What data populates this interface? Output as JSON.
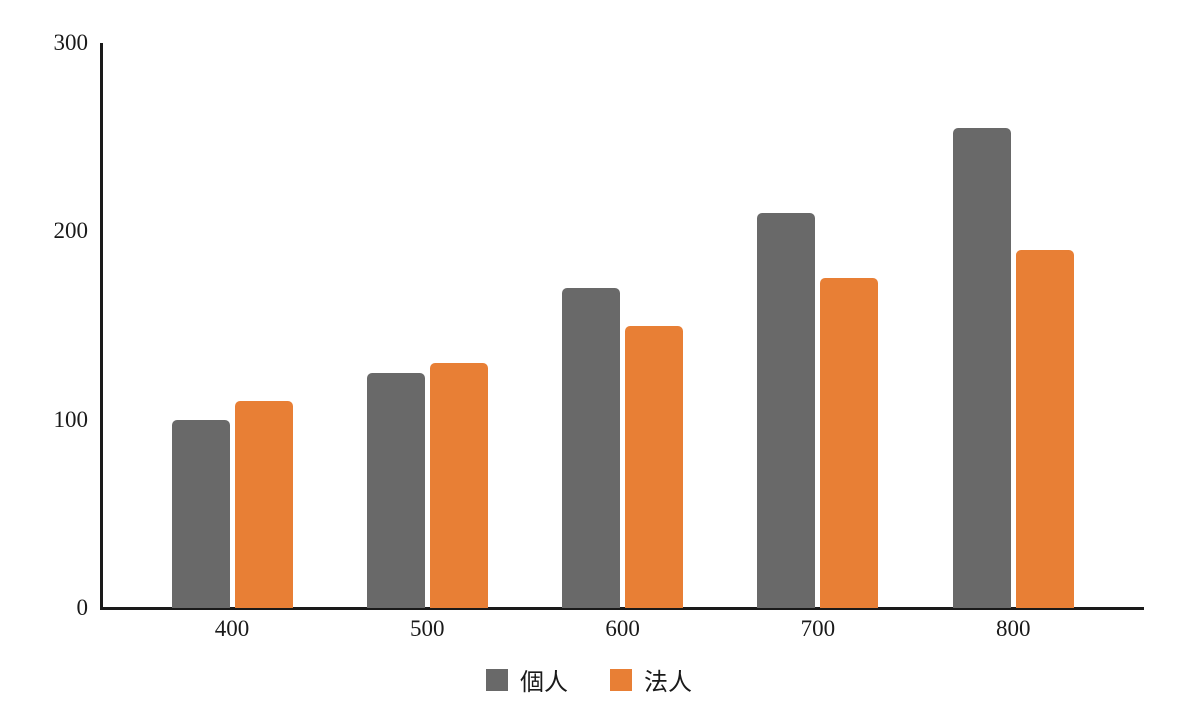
{
  "chart_data": {
    "type": "bar",
    "title": "",
    "xlabel": "",
    "ylabel": "",
    "categories": [
      "400",
      "500",
      "600",
      "700",
      "800"
    ],
    "series": [
      {
        "name": "個人",
        "key": "individual",
        "color": "#696969",
        "values": [
          100,
          125,
          170,
          210,
          255
        ]
      },
      {
        "name": "法人",
        "key": "corporate",
        "color": "#e87f35",
        "values": [
          110,
          130,
          150,
          175,
          190
        ]
      }
    ],
    "ylim": [
      0,
      300
    ],
    "yticks": [
      0,
      100,
      200,
      300
    ],
    "grid": false,
    "legend_position": "bottom"
  },
  "colors": {
    "axis": "#1a1a1a",
    "text": "#1a1a1a",
    "background": "#ffffff"
  }
}
